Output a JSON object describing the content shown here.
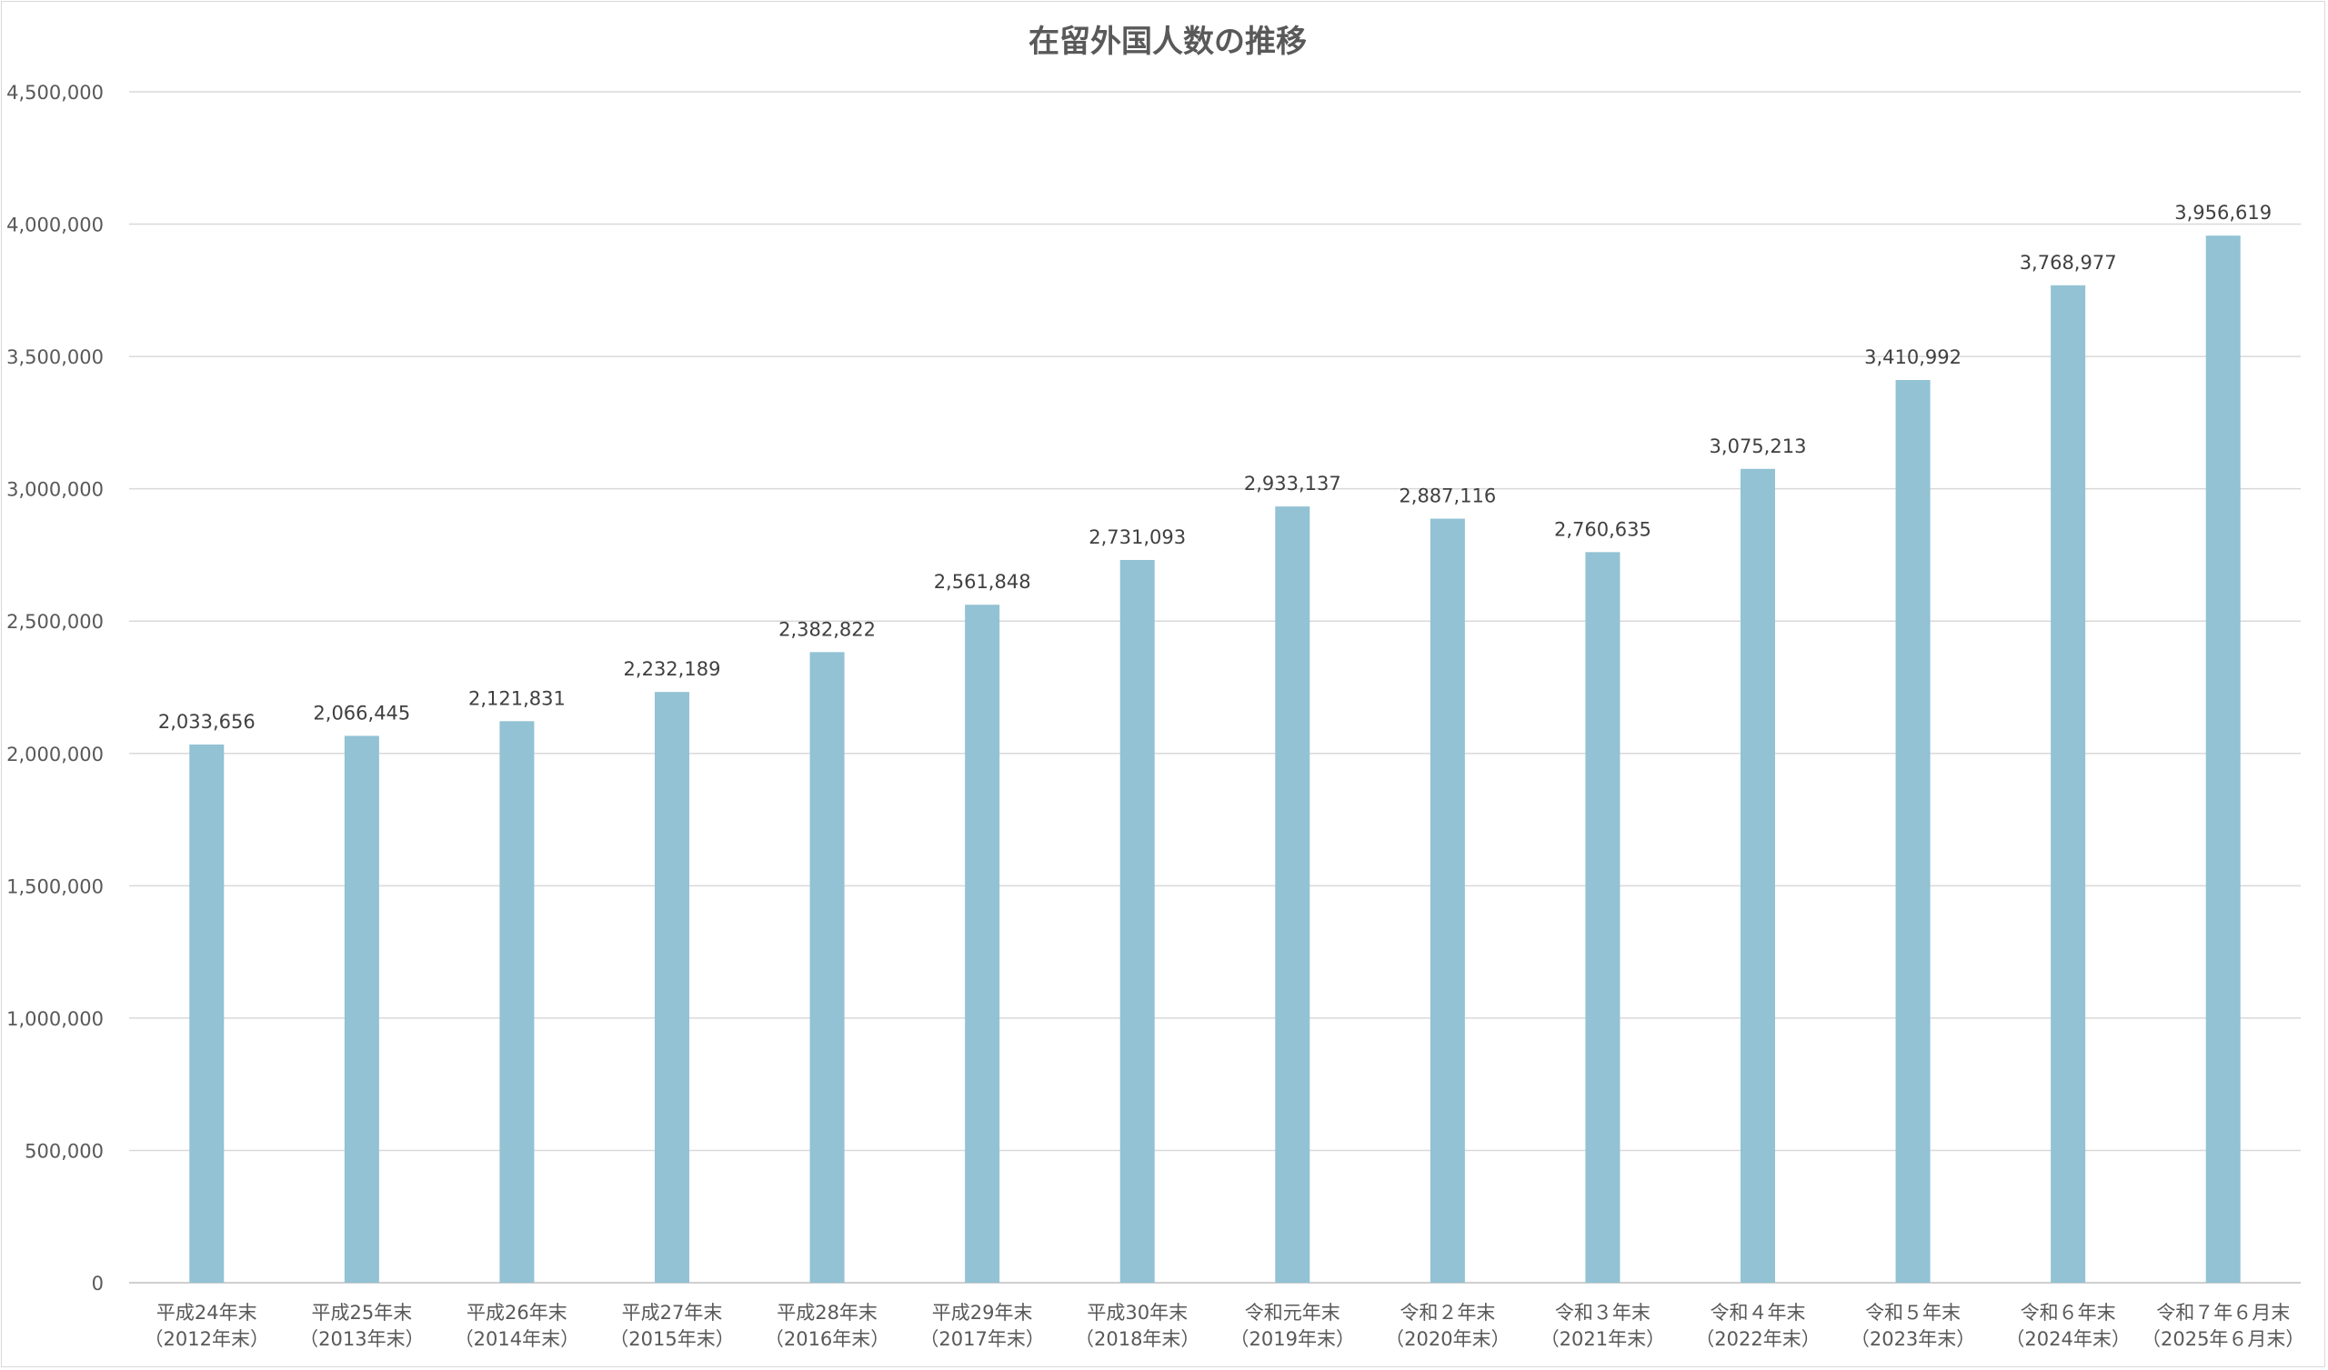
{
  "chart_data": {
    "type": "bar",
    "title": "在留外国人数の推移",
    "xlabel": "",
    "ylabel": "",
    "categories": [
      [
        "平成24年末",
        "（2012年末）"
      ],
      [
        "平成25年末",
        "（2013年末）"
      ],
      [
        "平成26年末",
        "（2014年末）"
      ],
      [
        "平成27年末",
        "（2015年末）"
      ],
      [
        "平成28年末",
        "（2016年末）"
      ],
      [
        "平成29年末",
        "（2017年末）"
      ],
      [
        "平成30年末",
        "（2018年末）"
      ],
      [
        "令和元年末",
        "（2019年末）"
      ],
      [
        "令和２年末",
        "（2020年末）"
      ],
      [
        "令和３年末",
        "（2021年末）"
      ],
      [
        "令和４年末",
        "（2022年末）"
      ],
      [
        "令和５年末",
        "（2023年末）"
      ],
      [
        "令和６年末",
        "（2024年末）"
      ],
      [
        "令和７年６月末",
        "（2025年６月末）"
      ]
    ],
    "values": [
      2033656,
      2066445,
      2121831,
      2232189,
      2382822,
      2561848,
      2731093,
      2933137,
      2887116,
      2760635,
      3075213,
      3410992,
      3768977,
      3956619
    ],
    "data_labels": [
      "2,033,656",
      "2,066,445",
      "2,121,831",
      "2,232,189",
      "2,382,822",
      "2,561,848",
      "2,731,093",
      "2,933,137",
      "2,887,116",
      "2,760,635",
      "3,075,213",
      "3,410,992",
      "3,768,977",
      "3,956,619"
    ],
    "yticks": [
      0,
      500000,
      1000000,
      1500000,
      2000000,
      2500000,
      3000000,
      3500000,
      4000000,
      4500000
    ],
    "ytick_labels": [
      "0",
      "500,000",
      "1,000,000",
      "1,500,000",
      "2,000,000",
      "2,500,000",
      "3,000,000",
      "3,500,000",
      "4,000,000",
      "4,500,000"
    ],
    "ylim": [
      0,
      4500000
    ],
    "grid": true,
    "legend": "none",
    "colors": {
      "bar": "#92c2d3",
      "grid": "#d9d9d9",
      "axis": "#bfbfbf",
      "text": "#595959"
    }
  }
}
